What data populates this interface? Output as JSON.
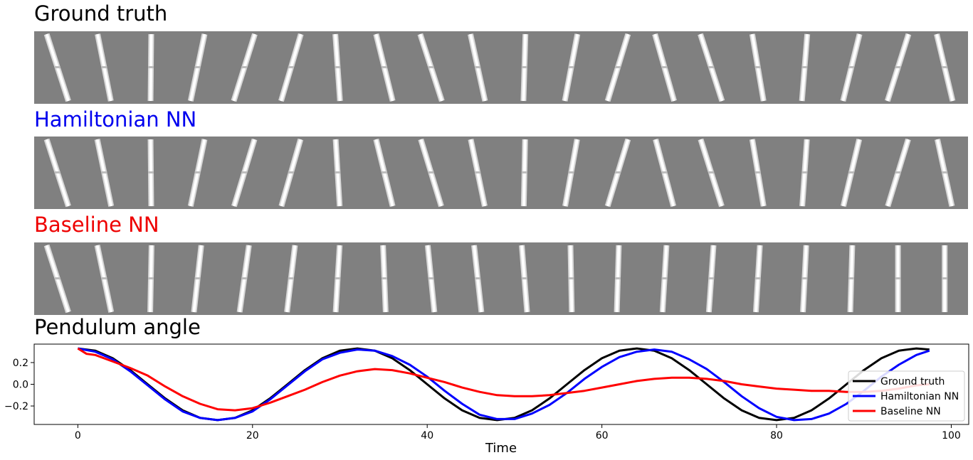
{
  "panels": [
    {
      "title": "Ground truth",
      "color": "#000000"
    },
    {
      "title": "Hamiltonian NN",
      "color": "#0000ee"
    },
    {
      "title": "Baseline NN",
      "color": "#ee0000"
    }
  ],
  "strip_frames": {
    "count": 20,
    "gt_angles": [
      0.33,
      0.2,
      -0.01,
      -0.21,
      -0.32,
      -0.3,
      0.07,
      0.25,
      0.33,
      0.22,
      -0.03,
      -0.19,
      -0.31,
      0.29,
      0.33,
      0.17,
      -0.08,
      -0.25,
      -0.32,
      0.24
    ],
    "hnn_angles": [
      0.33,
      0.21,
      0.01,
      -0.21,
      -0.31,
      -0.29,
      0.06,
      0.25,
      0.31,
      0.21,
      -0.02,
      -0.18,
      -0.31,
      0.27,
      0.32,
      0.17,
      -0.07,
      -0.24,
      -0.31,
      0.22
    ],
    "base_angles": [
      0.33,
      0.21,
      -0.02,
      -0.11,
      -0.14,
      -0.12,
      -0.06,
      0.04,
      0.1,
      0.11,
      0.08,
      0.02,
      -0.03,
      -0.06,
      -0.07,
      -0.06,
      -0.05,
      -0.03,
      0.0,
      0.0
    ]
  },
  "chart_title": "Pendulum angle",
  "chart_data": {
    "type": "line",
    "xlabel": "Time",
    "ylabel": "",
    "xlim": [
      -5,
      102
    ],
    "ylim": [
      -0.37,
      0.37
    ],
    "xticks": [
      0,
      20,
      40,
      60,
      80,
      100
    ],
    "yticks": [
      0.2,
      0.0,
      -0.2
    ],
    "ytick_labels": [
      "0.2",
      "0.0",
      "−0.2"
    ],
    "legend_position": "lower-right",
    "grid": false,
    "series": [
      {
        "name": "Ground truth",
        "color": "#000000",
        "x": [
          0,
          2,
          4,
          6,
          8,
          10,
          12,
          14,
          16,
          18,
          20,
          22,
          24,
          26,
          28,
          30,
          32,
          34,
          36,
          38,
          40,
          42,
          44,
          46,
          48,
          50,
          52,
          54,
          56,
          58,
          60,
          62,
          64,
          66,
          68,
          70,
          72,
          74,
          76,
          78,
          80,
          82,
          84,
          86,
          88,
          90,
          92,
          94,
          96,
          97.5
        ],
        "y": [
          0.33,
          0.31,
          0.24,
          0.13,
          0.0,
          -0.13,
          -0.24,
          -0.31,
          -0.33,
          -0.31,
          -0.24,
          -0.13,
          0.0,
          0.13,
          0.24,
          0.31,
          0.33,
          0.31,
          0.24,
          0.13,
          0.0,
          -0.13,
          -0.24,
          -0.31,
          -0.33,
          -0.31,
          -0.24,
          -0.13,
          0.0,
          0.13,
          0.24,
          0.31,
          0.33,
          0.31,
          0.24,
          0.13,
          0.0,
          -0.13,
          -0.24,
          -0.31,
          -0.33,
          -0.31,
          -0.24,
          -0.13,
          0.0,
          0.13,
          0.24,
          0.31,
          0.33,
          0.32
        ]
      },
      {
        "name": "Hamiltonian NN",
        "color": "#0000ff",
        "x": [
          0,
          2,
          4,
          6,
          8,
          10,
          12,
          14,
          16,
          18,
          20,
          22,
          24,
          26,
          28,
          30,
          32,
          34,
          36,
          38,
          40,
          42,
          44,
          46,
          48,
          50,
          52,
          54,
          56,
          58,
          60,
          62,
          64,
          66,
          68,
          70,
          72,
          74,
          76,
          78,
          80,
          82,
          84,
          86,
          88,
          90,
          92,
          94,
          96,
          97.5
        ],
        "y": [
          0.33,
          0.3,
          0.23,
          0.12,
          -0.01,
          -0.14,
          -0.25,
          -0.31,
          -0.33,
          -0.31,
          -0.25,
          -0.14,
          -0.01,
          0.12,
          0.23,
          0.29,
          0.32,
          0.31,
          0.26,
          0.18,
          0.07,
          -0.06,
          -0.18,
          -0.28,
          -0.32,
          -0.32,
          -0.27,
          -0.19,
          -0.08,
          0.05,
          0.16,
          0.25,
          0.3,
          0.32,
          0.3,
          0.23,
          0.14,
          0.02,
          -0.11,
          -0.22,
          -0.3,
          -0.33,
          -0.32,
          -0.27,
          -0.18,
          -0.06,
          0.07,
          0.18,
          0.27,
          0.31
        ]
      },
      {
        "name": "Baseline NN",
        "color": "#ff0000",
        "x": [
          0,
          1,
          2,
          4,
          6,
          8,
          10,
          12,
          14,
          16,
          18,
          20,
          22,
          24,
          26,
          28,
          30,
          32,
          34,
          36,
          38,
          40,
          42,
          44,
          46,
          48,
          50,
          52,
          54,
          56,
          58,
          60,
          62,
          64,
          66,
          68,
          70,
          72,
          74,
          76,
          78,
          80,
          82,
          84,
          86,
          88,
          90,
          92,
          94,
          96,
          97.5
        ],
        "y": [
          0.33,
          0.28,
          0.27,
          0.21,
          0.15,
          0.08,
          -0.02,
          -0.11,
          -0.18,
          -0.23,
          -0.24,
          -0.22,
          -0.17,
          -0.11,
          -0.05,
          0.02,
          0.08,
          0.12,
          0.14,
          0.13,
          0.1,
          0.06,
          0.02,
          -0.03,
          -0.07,
          -0.1,
          -0.11,
          -0.11,
          -0.1,
          -0.08,
          -0.06,
          -0.03,
          0.0,
          0.03,
          0.05,
          0.06,
          0.06,
          0.05,
          0.03,
          0.0,
          -0.02,
          -0.04,
          -0.05,
          -0.06,
          -0.06,
          -0.07,
          -0.07,
          -0.06,
          -0.04,
          -0.01,
          0.0
        ]
      }
    ]
  }
}
